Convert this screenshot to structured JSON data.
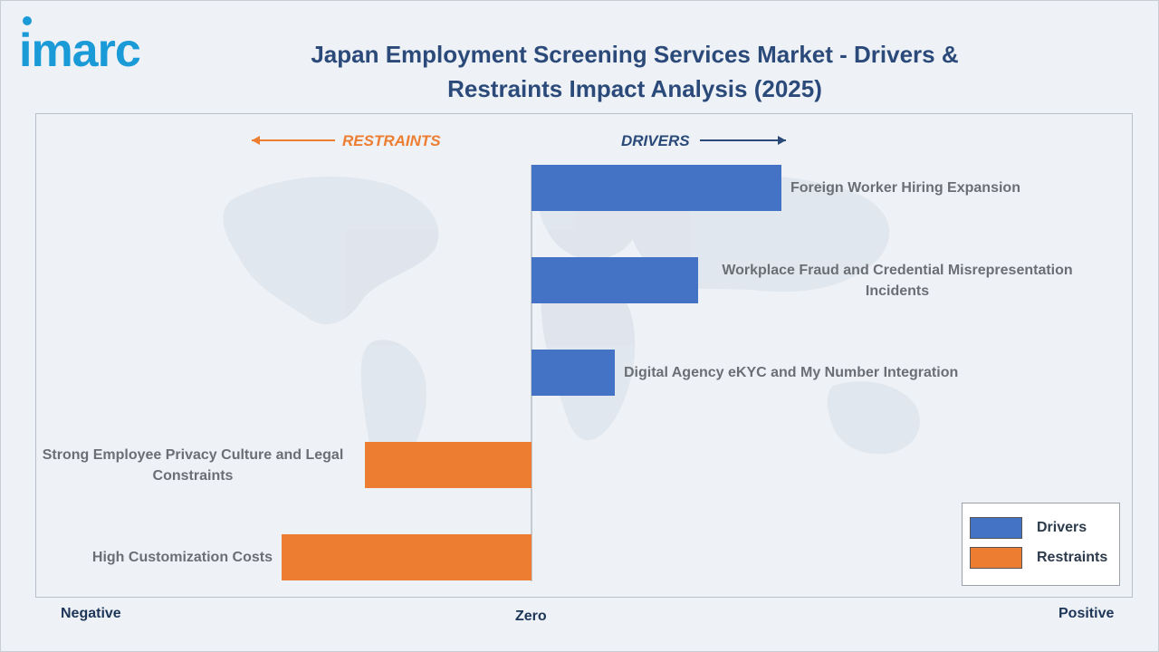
{
  "header": {
    "logo_text": "imarc",
    "title_line1": "Japan Employment Screening Services Market - Drivers &",
    "title_line2": "Restraints Impact Analysis (2025)"
  },
  "colors": {
    "drivers": "#4472c4",
    "restraints": "#ed7d31",
    "title": "#2b4a7a",
    "drivers_label": "#2b4a7a",
    "restraints_label": "#ed7d31",
    "logo": "#1a9ad6"
  },
  "direction_labels": {
    "restraints": "RESTRAINTS",
    "drivers": "DRIVERS"
  },
  "axis": {
    "negative": "Negative",
    "zero": "Zero",
    "positive": "Positive"
  },
  "legend": {
    "drivers": "Drivers",
    "restraints": "Restraints",
    "placement": "bottom-right"
  },
  "chart_data": {
    "type": "bar",
    "orientation": "horizontal",
    "title": "Japan Employment Screening Services Market - Drivers & Restraints Impact Analysis (2025)",
    "categories": [
      "Foreign Worker Hiring Expansion",
      "Workplace Fraud and Credential Misrepresentation Incidents",
      "Digital Agency eKYC and My Number Integration",
      "Strong Employee Privacy Culture and Legal Constraints",
      "High Customization Costs"
    ],
    "category_lines": [
      [
        "Foreign Worker Hiring Expansion"
      ],
      [
        "Workplace Fraud and Credential Misrepresentation",
        "Incidents"
      ],
      [
        "Digital Agency eKYC and My Number Integration"
      ],
      [
        "Strong Employee Privacy Culture and Legal",
        "Constraints"
      ],
      [
        "High Customization Costs"
      ]
    ],
    "series": [
      {
        "name": "Drivers",
        "values": [
          3.0,
          2.0,
          1.0,
          null,
          null
        ]
      },
      {
        "name": "Restraints",
        "values": [
          null,
          null,
          null,
          -2.0,
          -3.0
        ]
      }
    ],
    "xlim": [
      -6,
      7.2
    ],
    "grid": false,
    "legend": "bottom-right"
  }
}
